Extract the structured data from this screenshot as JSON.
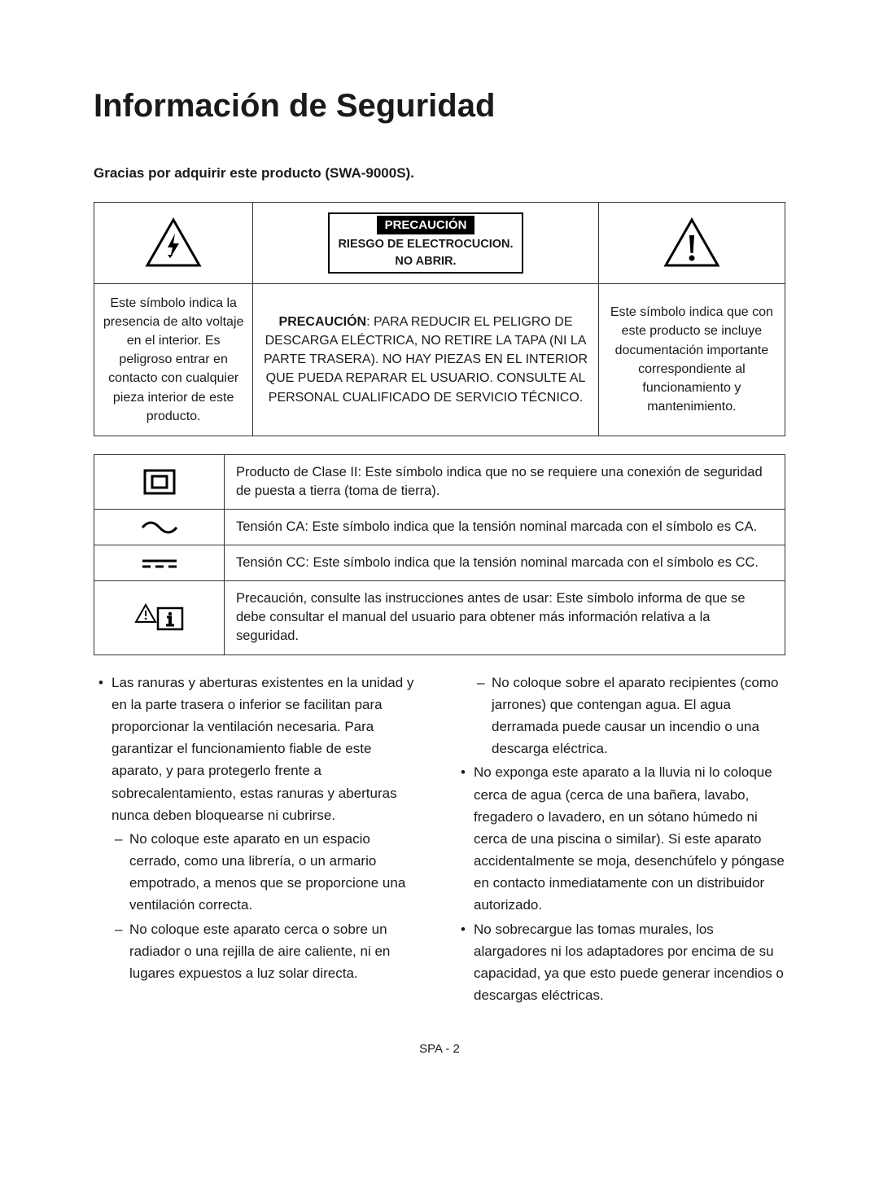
{
  "title": "Información de Seguridad",
  "subtitle": "Gracias por adquirir este producto (SWA-9000S).",
  "warning_box": {
    "black_label": "PRECAUCIÓN",
    "line2": "RIESGO DE ELECTROCUCION.",
    "line3": "NO ABRIR."
  },
  "warning_row2": {
    "left": "Este símbolo indica la presencia de alto voltaje en el interior. Es peligroso entrar en contacto con cualquier pieza interior de este producto.",
    "mid_prefix": "PRECAUCIÓN",
    "mid_rest": ": PARA REDUCIR EL PELIGRO DE DESCARGA ELÉCTRICA, NO RETIRE LA TAPA (NI LA PARTE TRASERA). NO HAY PIEZAS EN EL INTERIOR QUE PUEDA REPARAR EL USUARIO. CONSULTE AL PERSONAL CUALIFICADO DE SERVICIO TÉCNICO.",
    "right": "Este símbolo indica que con este producto se incluye documentación importante correspondiente al funcionamiento y mantenimiento."
  },
  "symbol_rows": [
    {
      "icon": "class2",
      "text": "Producto de Clase II: Este símbolo indica que no se requiere una conexión de seguridad de puesta a tierra (toma de tierra)."
    },
    {
      "icon": "ac",
      "text": "Tensión CA: Este símbolo indica que la tensión nominal marcada con el símbolo es CA."
    },
    {
      "icon": "dc",
      "text": "Tensión CC: Este símbolo indica que la tensión nominal marcada con el símbolo es CC."
    },
    {
      "icon": "manual",
      "text": "Precaución, consulte las instrucciones antes de usar: Este símbolo informa de que se debe consultar el manual del usuario para obtener más información relativa a la seguridad."
    }
  ],
  "bullets_left": [
    {
      "type": "bull",
      "text": "Las ranuras y aberturas existentes en la unidad y en la parte trasera o inferior se facilitan para proporcionar la ventilación necesaria. Para garantizar el funcionamiento fiable de este aparato, y para protegerlo frente a sobrecalentamiento, estas ranuras y aberturas nunca deben bloquearse ni cubrirse."
    },
    {
      "type": "dash",
      "text": "No coloque este aparato en un espacio cerrado, como una librería, o un armario empotrado, a menos que se proporcione una ventilación correcta."
    },
    {
      "type": "dash",
      "text": "No coloque este aparato cerca o sobre un radiador o una rejilla de aire caliente, ni en lugares expuestos a luz solar directa."
    }
  ],
  "bullets_right": [
    {
      "type": "dash",
      "text": "No coloque sobre el aparato recipientes (como jarrones) que contengan agua. El agua derramada puede causar un incendio o una descarga eléctrica."
    },
    {
      "type": "bull",
      "text": "No exponga este aparato a la lluvia ni lo coloque cerca de agua (cerca de una bañera, lavabo, fregadero o lavadero, en un sótano húmedo ni cerca de una piscina o similar). Si este aparato accidentalmente se moja, desenchúfelo y póngase en contacto inmediatamente con un distribuidor autorizado."
    },
    {
      "type": "bull",
      "text": "No sobrecargue las tomas murales, los alargadores ni los adaptadores por encima de su capacidad, ya que esto puede generar incendios o descargas eléctricas."
    }
  ],
  "page_num": "SPA - 2"
}
